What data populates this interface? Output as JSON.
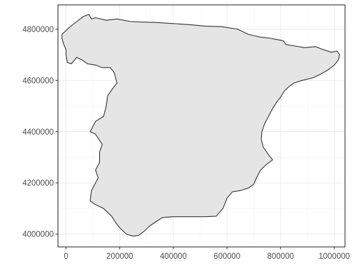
{
  "map": {
    "region_outline_color": "#333333",
    "region_fill_color": "#e5e5e5",
    "panel_border_color": "#333333",
    "grid_color": "#ebebeb",
    "grid_minor_color": "#f4f4f4",
    "background_color": "#ffffff"
  },
  "chart_data": {
    "type": "map",
    "xlim": [
      -30000,
      1040000
    ],
    "ylim": [
      3950000,
      4895000
    ],
    "x_ticks": [
      {
        "value": 0,
        "label": "0"
      },
      {
        "value": 200000,
        "label": "200000"
      },
      {
        "value": 400000,
        "label": "400000"
      },
      {
        "value": 600000,
        "label": "600000"
      },
      {
        "value": 800000,
        "label": "800000"
      },
      {
        "value": 1000000,
        "label": "1000000"
      }
    ],
    "y_ticks": [
      {
        "value": 4000000,
        "label": "4000000"
      },
      {
        "value": 4200000,
        "label": "4200000"
      },
      {
        "value": 4400000,
        "label": "4400000"
      },
      {
        "value": 4600000,
        "label": "4600000"
      },
      {
        "value": 4800000,
        "label": "4800000"
      }
    ],
    "grid": true,
    "outline": [
      [
        -15000,
        4780000
      ],
      [
        10000,
        4805000
      ],
      [
        40000,
        4830000
      ],
      [
        65000,
        4850000
      ],
      [
        85000,
        4858000
      ],
      [
        95000,
        4840000
      ],
      [
        110000,
        4845000
      ],
      [
        150000,
        4835000
      ],
      [
        190000,
        4840000
      ],
      [
        240000,
        4830000
      ],
      [
        280000,
        4828000
      ],
      [
        340000,
        4826000
      ],
      [
        400000,
        4822000
      ],
      [
        460000,
        4818000
      ],
      [
        520000,
        4812000
      ],
      [
        580000,
        4810000
      ],
      [
        640000,
        4800000
      ],
      [
        680000,
        4780000
      ],
      [
        720000,
        4770000
      ],
      [
        760000,
        4765000
      ],
      [
        785000,
        4760000
      ],
      [
        810000,
        4755000
      ],
      [
        820000,
        4740000
      ],
      [
        850000,
        4735000
      ],
      [
        890000,
        4728000
      ],
      [
        930000,
        4732000
      ],
      [
        960000,
        4720000
      ],
      [
        990000,
        4710000
      ],
      [
        1010000,
        4715000
      ],
      [
        1020000,
        4700000
      ],
      [
        1015000,
        4680000
      ],
      [
        1000000,
        4660000
      ],
      [
        975000,
        4640000
      ],
      [
        950000,
        4625000
      ],
      [
        920000,
        4610000
      ],
      [
        880000,
        4600000
      ],
      [
        850000,
        4590000
      ],
      [
        830000,
        4575000
      ],
      [
        815000,
        4560000
      ],
      [
        800000,
        4535000
      ],
      [
        785000,
        4515000
      ],
      [
        770000,
        4490000
      ],
      [
        755000,
        4460000
      ],
      [
        740000,
        4430000
      ],
      [
        730000,
        4400000
      ],
      [
        728000,
        4370000
      ],
      [
        735000,
        4340000
      ],
      [
        755000,
        4310000
      ],
      [
        770000,
        4290000
      ],
      [
        745000,
        4270000
      ],
      [
        725000,
        4250000
      ],
      [
        710000,
        4220000
      ],
      [
        700000,
        4195000
      ],
      [
        680000,
        4180000
      ],
      [
        650000,
        4170000
      ],
      [
        620000,
        4165000
      ],
      [
        600000,
        4140000
      ],
      [
        585000,
        4100000
      ],
      [
        560000,
        4070000
      ],
      [
        520000,
        4068000
      ],
      [
        480000,
        4068000
      ],
      [
        440000,
        4068000
      ],
      [
        400000,
        4068000
      ],
      [
        360000,
        4065000
      ],
      [
        330000,
        4045000
      ],
      [
        310000,
        4030000
      ],
      [
        290000,
        4010000
      ],
      [
        270000,
        3995000
      ],
      [
        250000,
        3992000
      ],
      [
        225000,
        4000000
      ],
      [
        200000,
        4025000
      ],
      [
        185000,
        4045000
      ],
      [
        170000,
        4070000
      ],
      [
        140000,
        4100000
      ],
      [
        110000,
        4115000
      ],
      [
        90000,
        4130000
      ],
      [
        95000,
        4170000
      ],
      [
        110000,
        4200000
      ],
      [
        120000,
        4220000
      ],
      [
        110000,
        4250000
      ],
      [
        125000,
        4280000
      ],
      [
        125000,
        4320000
      ],
      [
        135000,
        4350000
      ],
      [
        110000,
        4390000
      ],
      [
        90000,
        4400000
      ],
      [
        110000,
        4440000
      ],
      [
        140000,
        4460000
      ],
      [
        150000,
        4500000
      ],
      [
        155000,
        4540000
      ],
      [
        175000,
        4570000
      ],
      [
        190000,
        4590000
      ],
      [
        180000,
        4630000
      ],
      [
        165000,
        4650000
      ],
      [
        135000,
        4650000
      ],
      [
        110000,
        4660000
      ],
      [
        80000,
        4665000
      ],
      [
        60000,
        4680000
      ],
      [
        40000,
        4690000
      ],
      [
        20000,
        4665000
      ],
      [
        5000,
        4670000
      ],
      [
        0,
        4700000
      ],
      [
        0,
        4720000
      ],
      [
        -10000,
        4745000
      ],
      [
        -15000,
        4765000
      ]
    ]
  }
}
